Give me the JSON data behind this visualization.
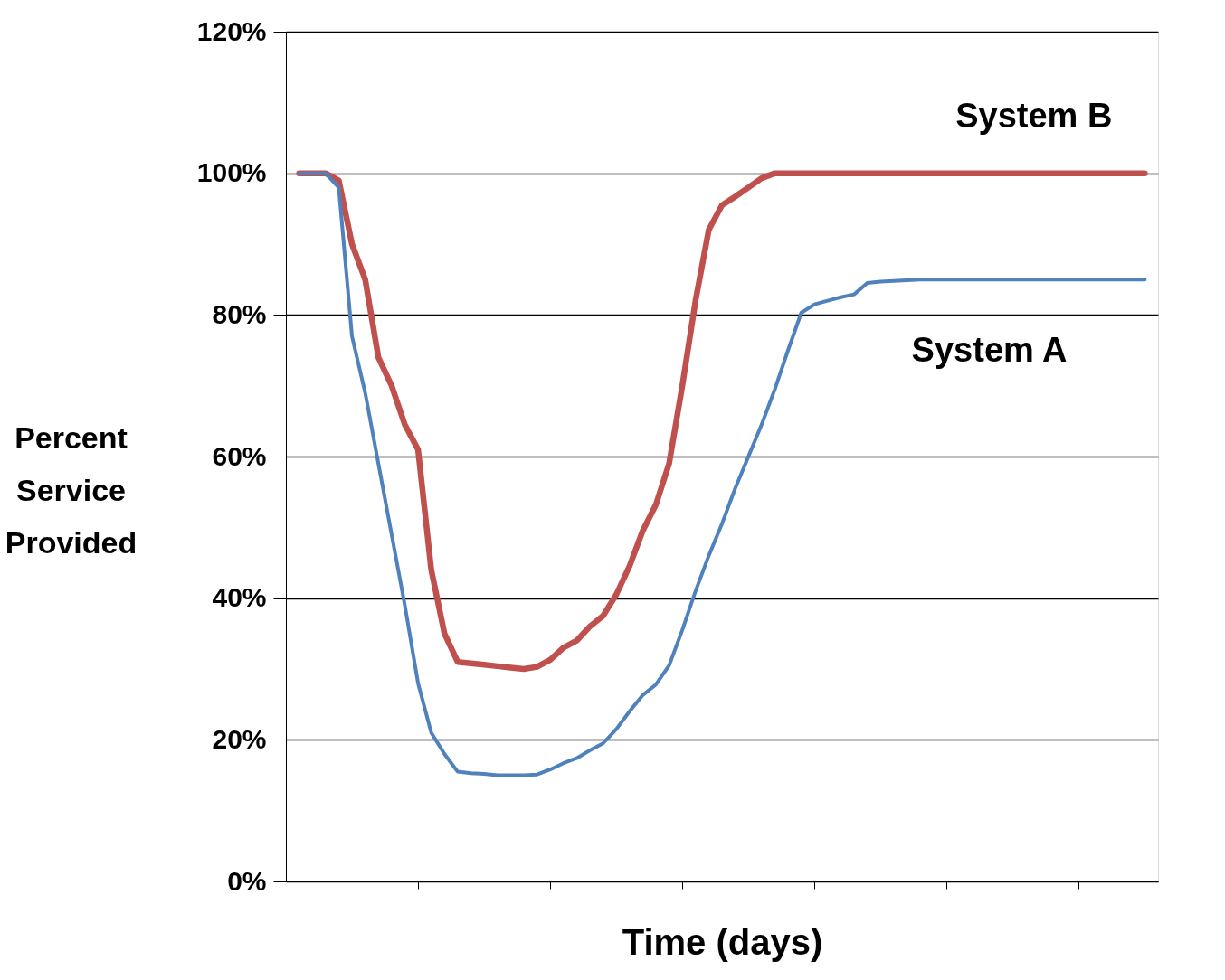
{
  "chart_data": {
    "type": "line",
    "xlabel": "Time (days)",
    "ylabel": "Percent Service Provided",
    "categories": [
      null,
      null,
      null,
      null,
      null,
      null,
      null,
      null,
      null,
      null,
      null,
      null,
      null,
      null,
      null,
      null,
      null,
      null,
      null,
      null,
      null,
      null,
      null,
      null,
      null,
      null,
      null,
      null,
      null,
      null,
      null,
      null,
      null,
      null,
      null,
      null,
      null,
      null,
      null,
      null,
      null,
      null,
      null,
      null,
      null,
      null,
      null,
      null,
      null,
      null,
      null,
      null,
      null,
      null,
      null,
      null,
      null,
      null,
      null,
      null,
      null,
      null,
      null,
      null,
      null
    ],
    "ylim": [
      0,
      120
    ],
    "yticks": [
      {
        "value": 0,
        "label": "0%"
      },
      {
        "value": 20,
        "label": "20%"
      },
      {
        "value": 40,
        "label": "40%"
      },
      {
        "value": 60,
        "label": "60%"
      },
      {
        "value": 80,
        "label": "80%"
      },
      {
        "value": 100,
        "label": "100%"
      },
      {
        "value": 120,
        "label": "120%"
      }
    ],
    "tick_labels": "y",
    "grid": "y",
    "legend": false,
    "marker": "none",
    "line_style": "solid",
    "series": [
      {
        "name": "System B",
        "color": "#c0504d",
        "values": [
          100,
          100,
          100,
          99,
          90,
          85,
          74,
          70,
          64.5,
          61,
          44,
          35,
          31,
          30.8,
          30.6,
          30.4,
          30.2,
          30,
          30.3,
          31.3,
          33,
          34,
          36,
          37.5,
          40.5,
          44.5,
          49.5,
          53.2,
          59,
          70,
          82,
          92,
          95.5,
          96.7,
          98,
          99.3,
          100,
          100,
          100,
          100,
          100,
          100,
          100,
          100,
          100,
          100,
          100,
          100,
          100,
          100,
          100,
          100,
          100,
          100,
          100,
          100,
          100,
          100,
          100,
          100,
          100,
          100,
          100,
          100,
          100
        ]
      },
      {
        "name": "System A",
        "color": "#4f81bd",
        "values": [
          100,
          100,
          100,
          98,
          77,
          69,
          59,
          49,
          39,
          28,
          21,
          18,
          15.5,
          15.3,
          15.2,
          15,
          15,
          15,
          15.1,
          15.8,
          16.7,
          17.4,
          18.5,
          19.5,
          21.5,
          24,
          26.3,
          27.8,
          30.5,
          35.5,
          41,
          46,
          50.5,
          55.5,
          60,
          64.5,
          69.5,
          75,
          80.3,
          81.5,
          82,
          82.5,
          82.9,
          84.5,
          84.7,
          84.8,
          84.9,
          85,
          85,
          85,
          85,
          85,
          85,
          85,
          85,
          85,
          85,
          85,
          85,
          85,
          85,
          85,
          85,
          85,
          85
        ]
      }
    ]
  }
}
